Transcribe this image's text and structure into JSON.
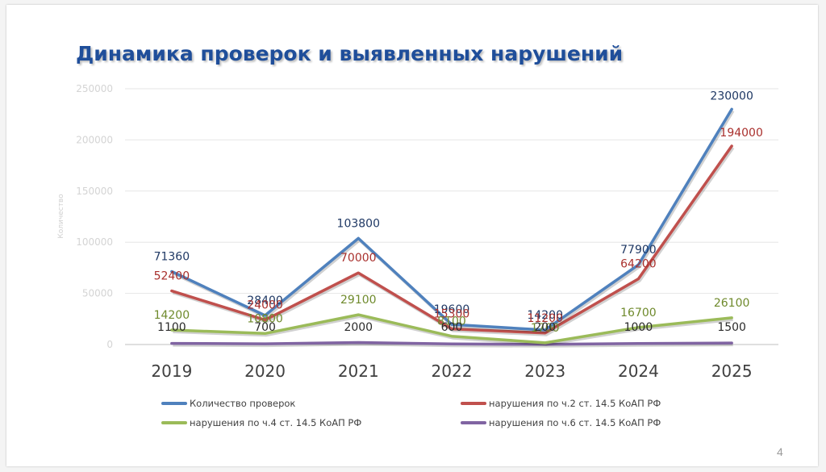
{
  "slide": {
    "title": "Динамика проверок и выявленных нарушений",
    "page_number": "4"
  },
  "chart_data": {
    "type": "line",
    "title": "Динамика проверок и выявленных нарушений",
    "ylabel": "Количество",
    "xlabel": "",
    "x": [
      "2019",
      "2020",
      "2021",
      "2022",
      "2023",
      "2024",
      "2025"
    ],
    "ylim": [
      0,
      250000
    ],
    "yticks": [
      0,
      50000,
      100000,
      150000,
      200000,
      250000
    ],
    "grid": true,
    "legend_position": "bottom",
    "series": [
      {
        "name": "Количество проверок",
        "color": "#4f81bd",
        "label_color": "#1f3864",
        "values": [
          71360,
          28400,
          103800,
          19600,
          14200,
          77900,
          230000
        ]
      },
      {
        "name": "нарушения по ч.2 ст. 14.5 КоАП РФ",
        "color": "#c0504d",
        "label_color": "#a9302d",
        "values": [
          52400,
          24000,
          70000,
          15300,
          11200,
          64200,
          194000
        ]
      },
      {
        "name": "нарушения по ч.4 ст. 14.5 КоАП РФ",
        "color": "#9bbb59",
        "label_color": "#6f8a2c",
        "values": [
          14200,
          10800,
          29100,
          8100,
          1700,
          16700,
          26100
        ]
      },
      {
        "name": "нарушения по ч.6 ст. 14.5 КоАП РФ",
        "color": "#8064a2",
        "label_color": "#2b2b2b",
        "values": [
          1100,
          700,
          2000,
          600,
          200,
          1000,
          1500
        ]
      }
    ]
  }
}
